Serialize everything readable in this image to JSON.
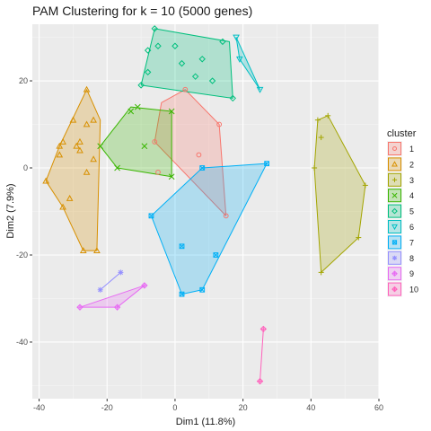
{
  "chart_data": {
    "type": "scatter",
    "title": "PAM Clustering for k = 10 (5000 genes)",
    "xlabel": "Dim1 (11.8%)",
    "ylabel": "Dim2 (7.9%)",
    "xlim": [
      -42,
      60
    ],
    "ylim": [
      -53,
      33
    ],
    "xticks": [
      -40,
      -20,
      0,
      20,
      40,
      60
    ],
    "yticks": [
      -40,
      -20,
      0,
      20
    ],
    "grid": true,
    "legend": {
      "title": "cluster",
      "position": "right"
    },
    "series": [
      {
        "name": "1",
        "color": "#F8766D",
        "shape": "circle",
        "points": [
          [
            -6,
            6
          ],
          [
            7,
            3
          ],
          [
            15,
            -11
          ],
          [
            -5,
            -1
          ],
          [
            3,
            18
          ],
          [
            13,
            10
          ]
        ],
        "hull": [
          [
            -6,
            6
          ],
          [
            -4,
            15
          ],
          [
            3,
            18
          ],
          [
            13,
            10
          ],
          [
            15,
            -11
          ]
        ]
      },
      {
        "name": "2",
        "color": "#D89000",
        "shape": "triangle",
        "points": [
          [
            -26,
            18
          ],
          [
            -24,
            11
          ],
          [
            -24,
            2
          ],
          [
            -26,
            10
          ],
          [
            -28,
            6
          ],
          [
            -30,
            11
          ],
          [
            -33,
            6
          ],
          [
            -34,
            5
          ],
          [
            -34,
            3
          ],
          [
            -29,
            5
          ],
          [
            -28,
            4
          ],
          [
            -26,
            -1
          ],
          [
            -31,
            -7
          ],
          [
            -33,
            -9
          ],
          [
            -38,
            -3
          ],
          [
            -27,
            -19
          ],
          [
            -23,
            -19
          ]
        ],
        "hull": [
          [
            -26,
            18
          ],
          [
            -22,
            11
          ],
          [
            -23,
            -19
          ],
          [
            -27,
            -19
          ],
          [
            -33,
            -9
          ],
          [
            -38,
            -3
          ],
          [
            -34,
            5
          ]
        ]
      },
      {
        "name": "3",
        "color": "#A3A500",
        "shape": "plus",
        "points": [
          [
            42,
            11
          ],
          [
            45,
            12
          ],
          [
            43,
            7
          ],
          [
            41,
            0
          ],
          [
            56,
            -4
          ],
          [
            54,
            -16
          ],
          [
            43,
            -24
          ]
        ],
        "hull": [
          [
            42,
            11
          ],
          [
            45,
            12
          ],
          [
            56,
            -4
          ],
          [
            54,
            -16
          ],
          [
            43,
            -24
          ],
          [
            41,
            0
          ]
        ]
      },
      {
        "name": "4",
        "color": "#39B600",
        "shape": "x",
        "points": [
          [
            -11,
            14
          ],
          [
            -13,
            13
          ],
          [
            -22,
            5
          ],
          [
            -17,
            0
          ],
          [
            -1,
            13
          ],
          [
            -1,
            -2
          ],
          [
            -9,
            5
          ]
        ],
        "hull": [
          [
            -13,
            14
          ],
          [
            -1,
            13
          ],
          [
            -1,
            -2
          ],
          [
            -17,
            0
          ],
          [
            -22,
            5
          ]
        ]
      },
      {
        "name": "5",
        "color": "#00BF7D",
        "shape": "diamond",
        "points": [
          [
            -6,
            32
          ],
          [
            -8,
            27
          ],
          [
            -10,
            19
          ],
          [
            -8,
            22
          ],
          [
            0,
            28
          ],
          [
            8,
            25
          ],
          [
            14,
            29
          ],
          [
            6,
            21
          ],
          [
            17,
            16
          ],
          [
            -5,
            28
          ],
          [
            2,
            24
          ],
          [
            11,
            20
          ]
        ],
        "hull": [
          [
            -6,
            32
          ],
          [
            16,
            29
          ],
          [
            17,
            16
          ],
          [
            -10,
            19
          ]
        ]
      },
      {
        "name": "6",
        "color": "#00BFC4",
        "shape": "triangle-down",
        "points": [
          [
            18,
            30
          ],
          [
            19,
            25
          ],
          [
            25,
            18
          ]
        ],
        "hull": [
          [
            18,
            30
          ],
          [
            25,
            18
          ],
          [
            19,
            25
          ]
        ]
      },
      {
        "name": "7",
        "color": "#00B0F6",
        "shape": "square",
        "points": [
          [
            27,
            1
          ],
          [
            8,
            0
          ],
          [
            -7,
            -11
          ],
          [
            2,
            -18
          ],
          [
            12,
            -20
          ],
          [
            8,
            -28
          ],
          [
            2,
            -29
          ]
        ],
        "hull": [
          [
            8,
            0
          ],
          [
            27,
            1
          ],
          [
            8,
            -28
          ],
          [
            2,
            -29
          ],
          [
            -7,
            -11
          ]
        ]
      },
      {
        "name": "8",
        "color": "#9590FF",
        "shape": "asterisk",
        "points": [
          [
            -16,
            -24
          ],
          [
            -22,
            -28
          ]
        ],
        "hull": [
          [
            -16,
            -24
          ],
          [
            -22,
            -28
          ]
        ]
      },
      {
        "name": "9",
        "color": "#E76BF3",
        "shape": "star",
        "points": [
          [
            -9,
            -27
          ],
          [
            -28,
            -32
          ],
          [
            -17,
            -32
          ]
        ],
        "hull": [
          [
            -9,
            -27
          ],
          [
            -17,
            -32
          ],
          [
            -28,
            -32
          ]
        ]
      },
      {
        "name": "10",
        "color": "#FF62BC",
        "shape": "star",
        "points": [
          [
            26,
            -37
          ],
          [
            25,
            -49
          ]
        ],
        "hull": [
          [
            26,
            -37
          ],
          [
            25,
            -49
          ]
        ]
      }
    ]
  }
}
